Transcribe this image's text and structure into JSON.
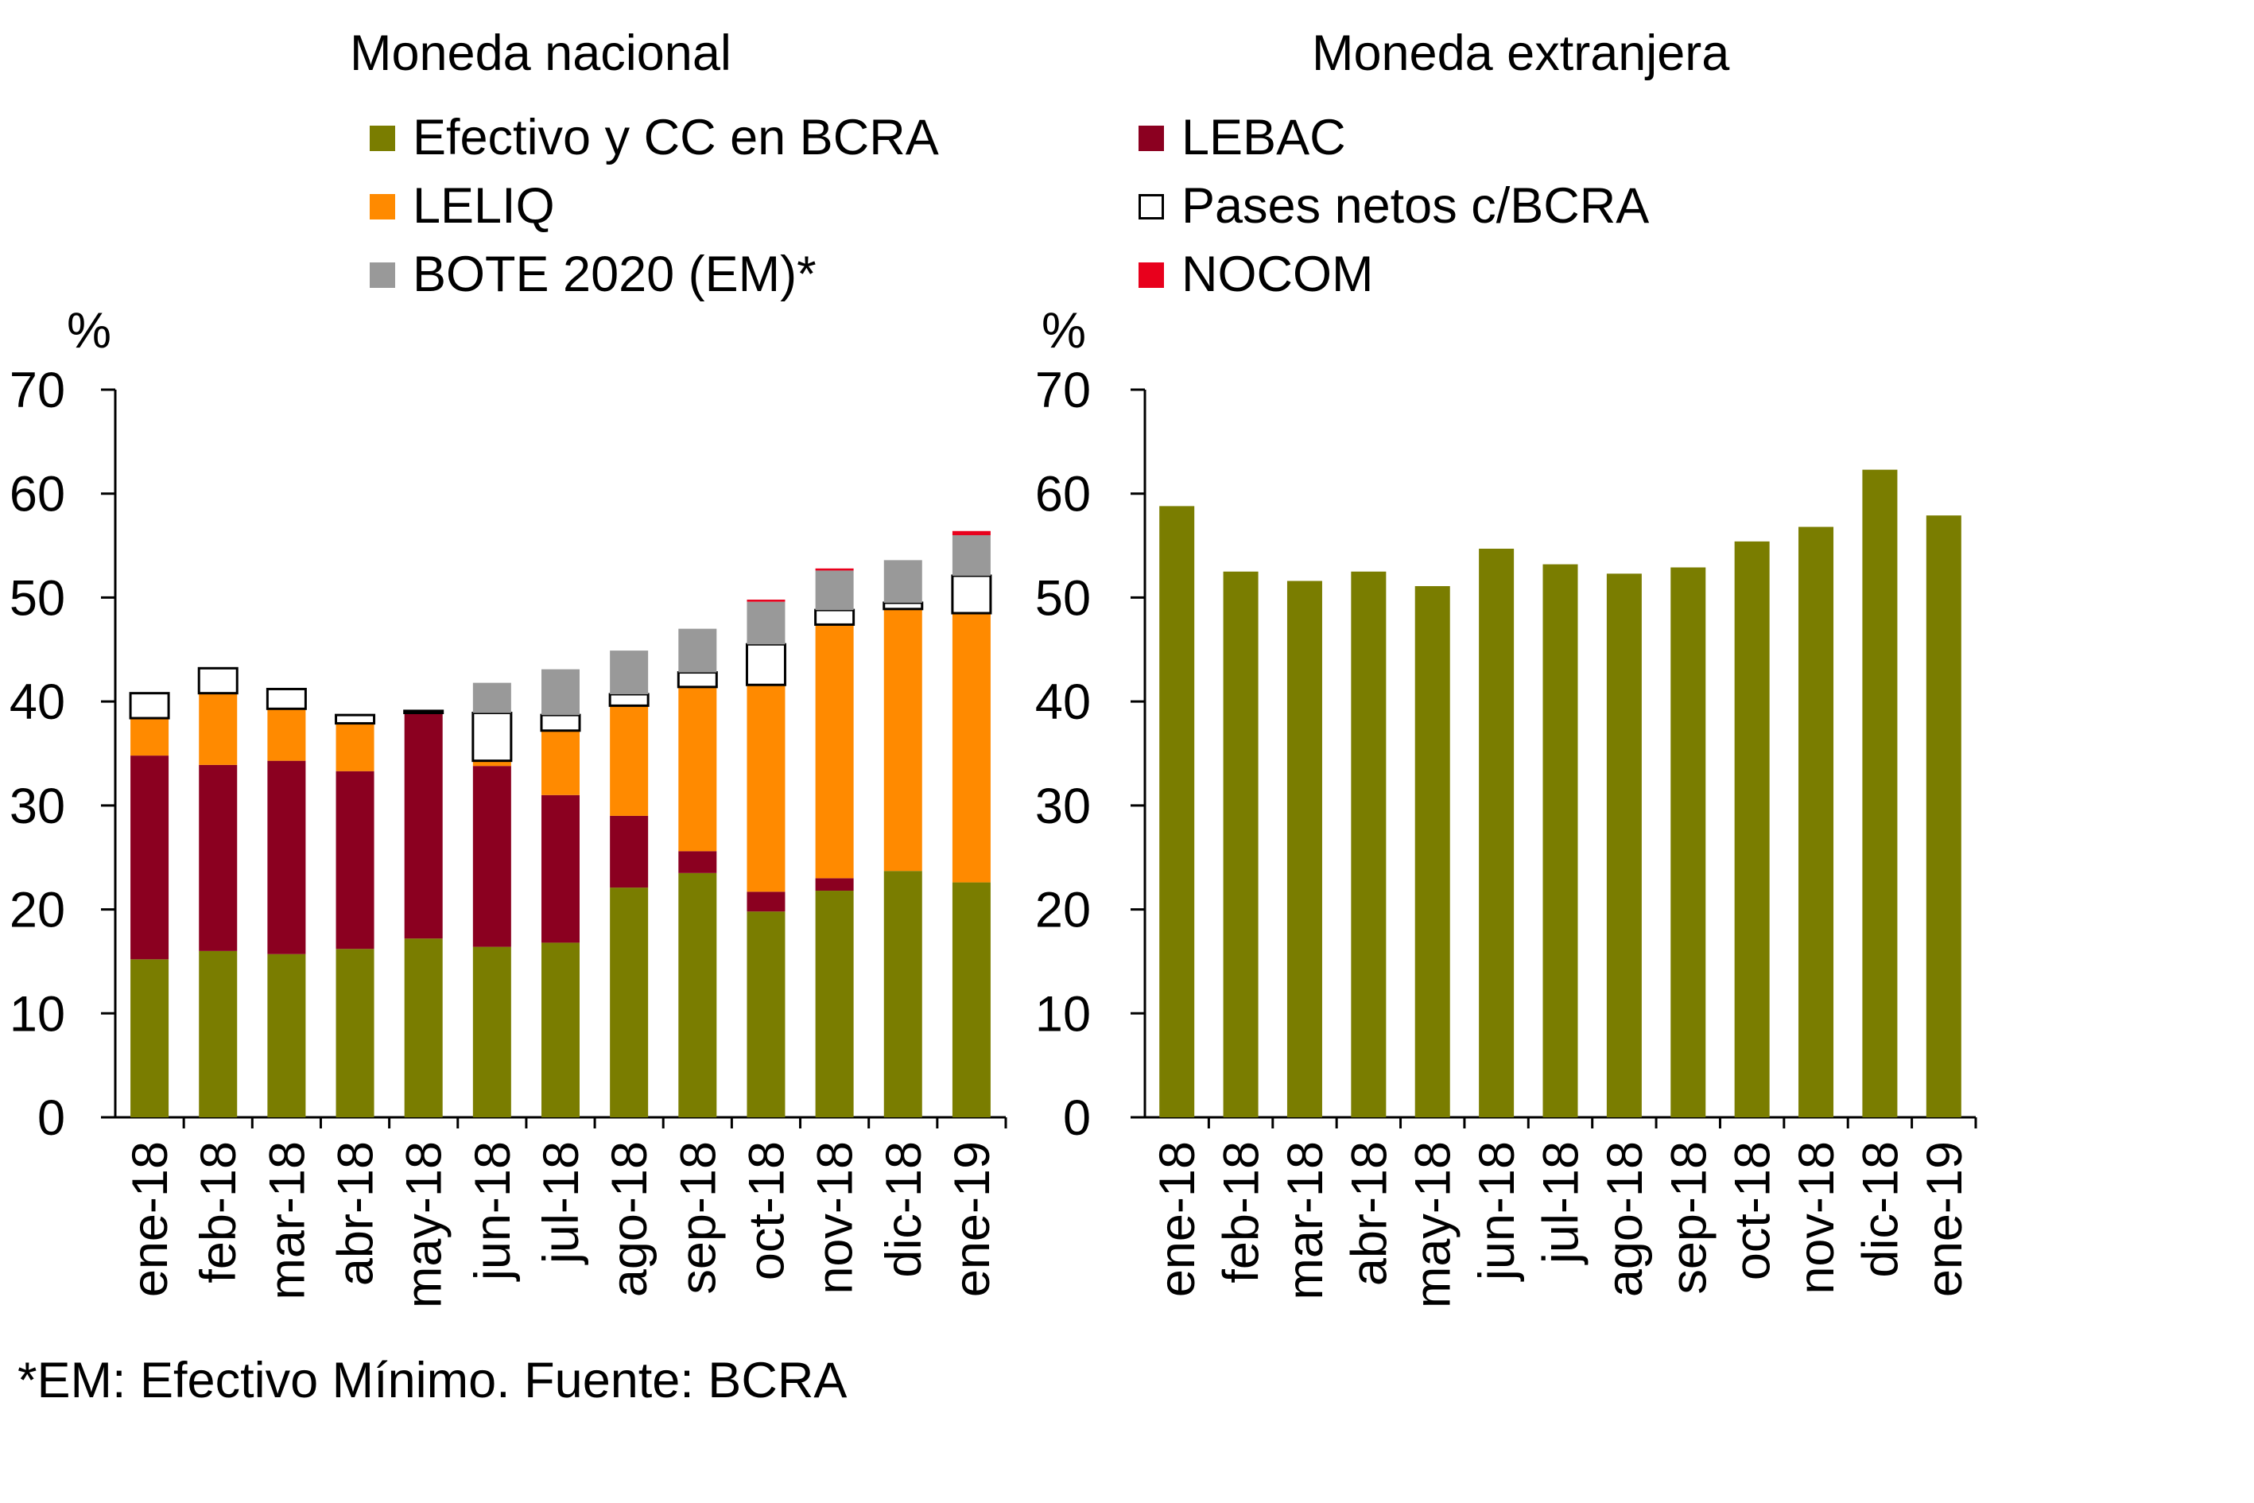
{
  "colors": {
    "efectivo": "#7a7d00",
    "leliq": "#ff8a00",
    "bote": "#999999",
    "lebac": "#8b0020",
    "pases": "#ffffff",
    "nocom": "#e8001c",
    "axis": "#000000"
  },
  "footnote": "*EM: Efectivo Mínimo. Fuente: BCRA",
  "chart_data": [
    {
      "type": "bar",
      "stacked": true,
      "title": "Moneda nacional",
      "ylabel": "%",
      "ylim": [
        0,
        70
      ],
      "yticks": [
        0,
        10,
        20,
        30,
        40,
        50,
        60,
        70
      ],
      "categories": [
        "ene-18",
        "feb-18",
        "mar-18",
        "abr-18",
        "may-18",
        "jun-18",
        "jul-18",
        "ago-18",
        "sep-18",
        "oct-18",
        "nov-18",
        "dic-18",
        "ene-19"
      ],
      "legend": [
        {
          "key": "efectivo",
          "label": "Efectivo y CC en BCRA"
        },
        {
          "key": "leliq",
          "label": "LELIQ"
        },
        {
          "key": "bote",
          "label": "BOTE 2020 (EM)*"
        }
      ],
      "series": [
        {
          "key": "efectivo",
          "name": "Efectivo y CC en BCRA",
          "values": [
            15.2,
            16.0,
            15.7,
            16.2,
            17.2,
            16.4,
            16.8,
            22.1,
            23.5,
            19.8,
            21.8,
            23.7,
            22.6
          ]
        },
        {
          "key": "lebac",
          "name": "LEBAC",
          "values": [
            19.6,
            17.9,
            18.6,
            17.1,
            21.7,
            17.4,
            14.2,
            6.9,
            2.1,
            1.9,
            1.2,
            0,
            0
          ]
        },
        {
          "key": "leliq",
          "name": "LELIQ",
          "values": [
            3.6,
            6.9,
            5.0,
            4.6,
            0,
            0.5,
            6.2,
            10.6,
            15.8,
            19.9,
            24.4,
            25.2,
            25.9
          ]
        },
        {
          "key": "pases",
          "name": "Pases netos c/BCRA",
          "values": [
            2.4,
            2.4,
            1.9,
            0.8,
            0.2,
            4.6,
            1.5,
            1.1,
            1.4,
            3.9,
            1.4,
            0.6,
            3.6
          ]
        },
        {
          "key": "bote",
          "name": "BOTE 2020 (EM)*",
          "values": [
            0,
            0,
            0,
            0,
            0,
            2.9,
            4.4,
            4.2,
            4.2,
            4.1,
            3.8,
            4.1,
            3.9
          ]
        },
        {
          "key": "nocom",
          "name": "NOCOM",
          "values": [
            0,
            0,
            0,
            0,
            0,
            0,
            0,
            0,
            0,
            0.2,
            0.2,
            0,
            0.4
          ]
        }
      ]
    },
    {
      "type": "bar",
      "title": "Moneda extranjera",
      "ylabel": "%",
      "ylim": [
        0,
        70
      ],
      "yticks": [
        0,
        10,
        20,
        30,
        40,
        50,
        60,
        70
      ],
      "categories": [
        "ene-18",
        "feb-18",
        "mar-18",
        "abr-18",
        "may-18",
        "jun-18",
        "jul-18",
        "ago-18",
        "sep-18",
        "oct-18",
        "nov-18",
        "dic-18",
        "ene-19"
      ],
      "legend": [
        {
          "key": "lebac",
          "label": "LEBAC"
        },
        {
          "key": "pases",
          "label": "Pases netos c/BCRA"
        },
        {
          "key": "nocom",
          "label": "NOCOM"
        }
      ],
      "series": [
        {
          "key": "efectivo",
          "name": "Efectivo y CC en BCRA",
          "values": [
            58.8,
            52.5,
            51.6,
            52.5,
            51.1,
            54.7,
            53.2,
            52.3,
            52.9,
            55.4,
            56.8,
            62.3,
            57.9
          ]
        }
      ]
    }
  ]
}
